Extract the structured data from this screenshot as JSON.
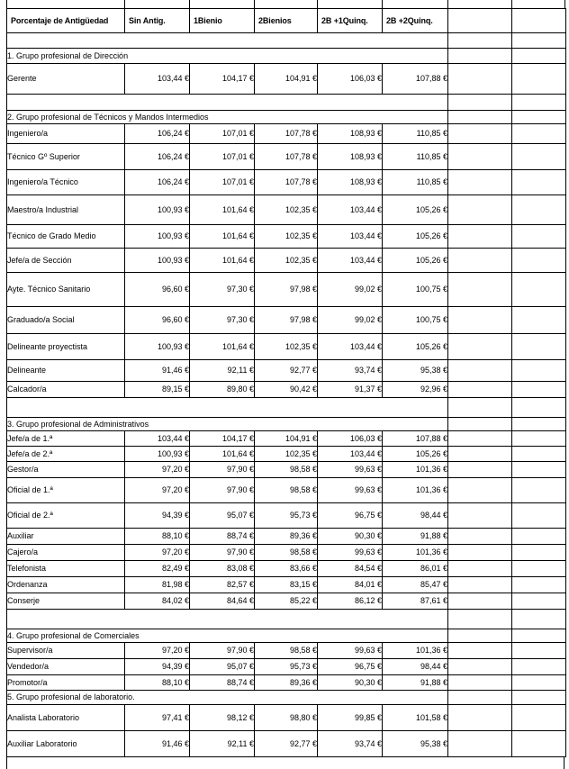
{
  "page": {
    "background": "#ffffff",
    "border_color": "#000000",
    "text_color": "#000000"
  },
  "table": {
    "columns": [
      "Porcentaje de Antigüedad",
      "Sin Antig.",
      "1Bienio",
      "2Bienios",
      "2B +1Quinq.",
      "2B +2Quinq.",
      "",
      ""
    ],
    "rows": [
      {
        "type": "blank",
        "h": 17
      },
      {
        "type": "group",
        "h": 17,
        "label": "1. Grupo profesional de Dirección"
      },
      {
        "type": "data",
        "h": 34,
        "indent": true,
        "label": "Gerente",
        "values": [
          "103,44 €",
          "104,17 €",
          "104,91 €",
          "106,03 €",
          "107,88 €"
        ]
      },
      {
        "type": "blank",
        "h": 18
      },
      {
        "type": "group",
        "h": 15,
        "label": "2. Grupo profesional de Técnicos y Mandos Intermedios"
      },
      {
        "type": "data",
        "h": 22,
        "indent": false,
        "label": "Ingeniero/a",
        "values": [
          "106,24 €",
          "107,01 €",
          "107,78 €",
          "108,93 €",
          "110,85 €"
        ]
      },
      {
        "type": "data",
        "h": 29,
        "indent": true,
        "label": "Técnico Gº Superior",
        "values": [
          "106,24 €",
          "107,01 €",
          "107,78 €",
          "108,93 €",
          "110,85 €"
        ]
      },
      {
        "type": "data",
        "h": 28,
        "indent": false,
        "label": "Ingeniero/a Técnico",
        "values": [
          "106,24 €",
          "107,01 €",
          "107,78 €",
          "108,93 €",
          "110,85 €"
        ]
      },
      {
        "type": "data",
        "h": 33,
        "indent": false,
        "label": "Maestro/a Industrial",
        "values": [
          "100,93 €",
          "101,64 €",
          "102,35 €",
          "103,44 €",
          "105,26 €"
        ]
      },
      {
        "type": "data",
        "h": 26,
        "indent": true,
        "label": "Técnico de Grado Medio",
        "values": [
          "100,93 €",
          "101,64 €",
          "102,35 €",
          "103,44 €",
          "105,26 €"
        ]
      },
      {
        "type": "data",
        "h": 27,
        "indent": false,
        "label": "Jefe/a de Sección",
        "values": [
          "100,93 €",
          "101,64 €",
          "102,35 €",
          "103,44 €",
          "105,26 €"
        ]
      },
      {
        "type": "data",
        "h": 38,
        "indent": true,
        "label": "Ayte. Técnico Sanitario",
        "values": [
          "96,60 €",
          "97,30 €",
          "97,98 €",
          "99,02 €",
          "100,75 €"
        ]
      },
      {
        "type": "data",
        "h": 30,
        "indent": false,
        "label": "Graduado/a Social",
        "values": [
          "96,60 €",
          "97,30 €",
          "97,98 €",
          "99,02 €",
          "100,75 €"
        ]
      },
      {
        "type": "data",
        "h": 29,
        "indent": false,
        "label": "Delineante proyectista",
        "values": [
          "100,93 €",
          "101,64 €",
          "102,35 €",
          "103,44 €",
          "105,26 €"
        ]
      },
      {
        "type": "data",
        "h": 24,
        "indent": false,
        "label": "Delineante",
        "values": [
          "91,46 €",
          "92,11 €",
          "92,77 €",
          "93,74 €",
          "95,38 €"
        ]
      },
      {
        "type": "data",
        "h": 18,
        "indent": false,
        "label": "Calcador/a",
        "values": [
          "89,15 €",
          "89,80 €",
          "90,42 €",
          "91,37 €",
          "92,96 €"
        ]
      },
      {
        "type": "blank",
        "h": 22
      },
      {
        "type": "group",
        "h": 15,
        "label": "3. Grupo profesional de Administrativos"
      },
      {
        "type": "data",
        "h": 17,
        "indent": false,
        "label": "Jefe/a de 1.ª",
        "values": [
          "103,44 €",
          "104,17 €",
          "104,91 €",
          "106,03 €",
          "107,88 €"
        ]
      },
      {
        "type": "data",
        "h": 17,
        "indent": false,
        "label": "Jefe/a de 2.ª",
        "values": [
          "100,93 €",
          "101,64 €",
          "102,35 €",
          "103,44 €",
          "105,26 €"
        ]
      },
      {
        "type": "data",
        "h": 18,
        "indent": false,
        "label": "Gestor/a",
        "values": [
          "97,20 €",
          "97,90 €",
          "98,58 €",
          "99,63 €",
          "101,36 €"
        ]
      },
      {
        "type": "data",
        "h": 28,
        "indent": true,
        "label": "Oficial de 1.ª",
        "values": [
          "97,20 €",
          "97,90 €",
          "98,58 €",
          "99,63 €",
          "101,36 €"
        ]
      },
      {
        "type": "data",
        "h": 28,
        "indent": true,
        "label": "Oficial de 2.ª",
        "values": [
          "94,39 €",
          "95,07 €",
          "95,73 €",
          "96,75 €",
          "98,44 €"
        ]
      },
      {
        "type": "data",
        "h": 18,
        "indent": false,
        "label": "Auxiliar",
        "values": [
          "88,10 €",
          "88,74 €",
          "89,36 €",
          "90,30 €",
          "91,88 €"
        ]
      },
      {
        "type": "data",
        "h": 18,
        "indent": false,
        "label": "Cajero/a",
        "values": [
          "97,20 €",
          "97,90 €",
          "98,58 €",
          "99,63 €",
          "101,36 €"
        ]
      },
      {
        "type": "data",
        "h": 18,
        "indent": false,
        "label": "Telefonista",
        "values": [
          "82,49 €",
          "83,08 €",
          "83,66 €",
          "84,54 €",
          "86,01 €"
        ]
      },
      {
        "type": "data",
        "h": 18,
        "indent": false,
        "label": "Ordenanza",
        "values": [
          "81,98 €",
          "82,57 €",
          "83,15 €",
          "84,01 €",
          "85,47 €"
        ]
      },
      {
        "type": "data",
        "h": 18,
        "indent": false,
        "label": "Conserje",
        "values": [
          "84,02 €",
          "84,64 €",
          "85,22 €",
          "86,12 €",
          "87,61 €"
        ]
      },
      {
        "type": "blank",
        "h": 22
      },
      {
        "type": "group",
        "h": 15,
        "label": "4. Grupo profesional de Comerciales"
      },
      {
        "type": "data",
        "h": 18,
        "indent": false,
        "label": "Supervisor/a",
        "values": [
          "97,20 €",
          "97,90 €",
          "98,58 €",
          "99,63 €",
          "101,36 €"
        ]
      },
      {
        "type": "data",
        "h": 18,
        "indent": false,
        "label": "Vendedor/a",
        "values": [
          "94,39 €",
          "95,07 €",
          "95,73 €",
          "96,75 €",
          "98,44 €"
        ]
      },
      {
        "type": "data",
        "h": 17,
        "indent": false,
        "label": "Promotor/a",
        "values": [
          "88,10 €",
          "88,74 €",
          "89,36 €",
          "90,30 €",
          "91,88 €"
        ]
      },
      {
        "type": "group",
        "h": 16,
        "label": "5. Grupo profesional de laboratorio."
      },
      {
        "type": "data",
        "h": 29,
        "indent": false,
        "label": "Analista Laboratorio",
        "values": [
          "97,41 €",
          "98,12 €",
          "98,80 €",
          "99,85 €",
          "101,58 €"
        ]
      },
      {
        "type": "data",
        "h": 29,
        "indent": false,
        "label": "Auxiliar Laboratorio",
        "values": [
          "91,46 €",
          "92,11 €",
          "92,77 €",
          "93,74 €",
          "95,38 €"
        ]
      }
    ]
  }
}
